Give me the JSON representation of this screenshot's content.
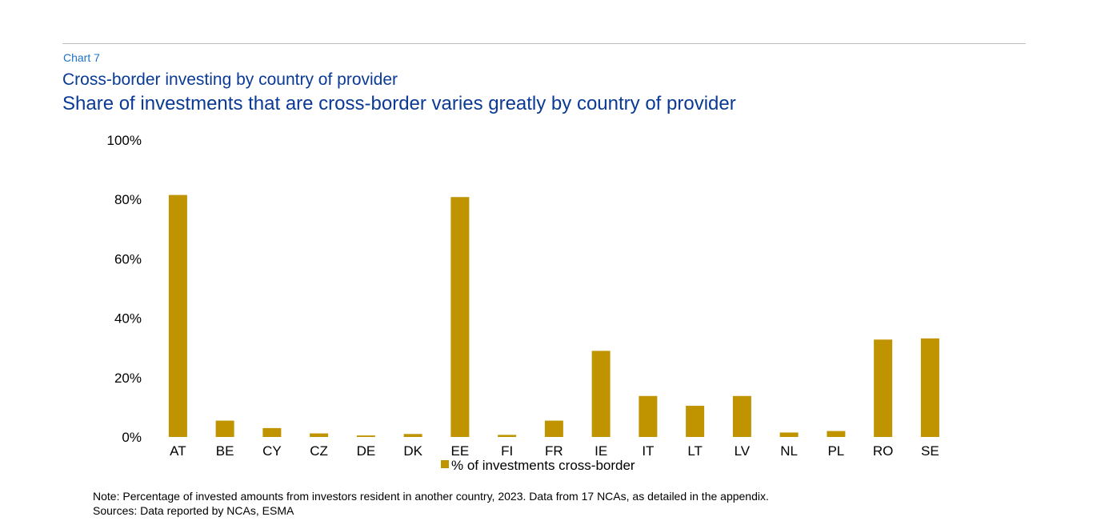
{
  "theme": {
    "title_color": "#0a3a96",
    "label_color": "#1f74c4",
    "bar_color": "#c09300"
  },
  "header": {
    "chart_label": "Chart 7",
    "subtitle": "Cross-border investing by country of provider",
    "title": "Share of investments that are cross-border varies greatly by country of provider"
  },
  "chart_data": {
    "type": "bar",
    "title": "Share of investments that are cross-border varies greatly by country of provider",
    "categories": [
      "AT",
      "BE",
      "CY",
      "CZ",
      "DE",
      "DK",
      "EE",
      "FI",
      "FR",
      "IE",
      "IT",
      "LT",
      "LV",
      "NL",
      "PL",
      "RO",
      "SE"
    ],
    "series": [
      {
        "name": "% of investments cross-border",
        "values": [
          81.5,
          5.5,
          3.0,
          1.2,
          0.5,
          1.0,
          80.8,
          0.7,
          5.5,
          29.0,
          13.8,
          10.5,
          13.8,
          1.5,
          2.0,
          32.8,
          33.2
        ]
      }
    ],
    "ylim": [
      0,
      100
    ],
    "yticks": [
      0,
      20,
      40,
      60,
      80,
      100
    ],
    "ytick_labels": [
      "0%",
      "20%",
      "40%",
      "60%",
      "80%",
      "100%"
    ],
    "xlabel": "",
    "ylabel": "",
    "grid": false,
    "legend": "bottom-center"
  },
  "footer": {
    "note": "Note: Percentage of invested amounts from investors resident in another country, 2023. Data from 17 NCAs, as detailed in the appendix.",
    "sources": "Sources: Data reported by NCAs, ESMA"
  }
}
